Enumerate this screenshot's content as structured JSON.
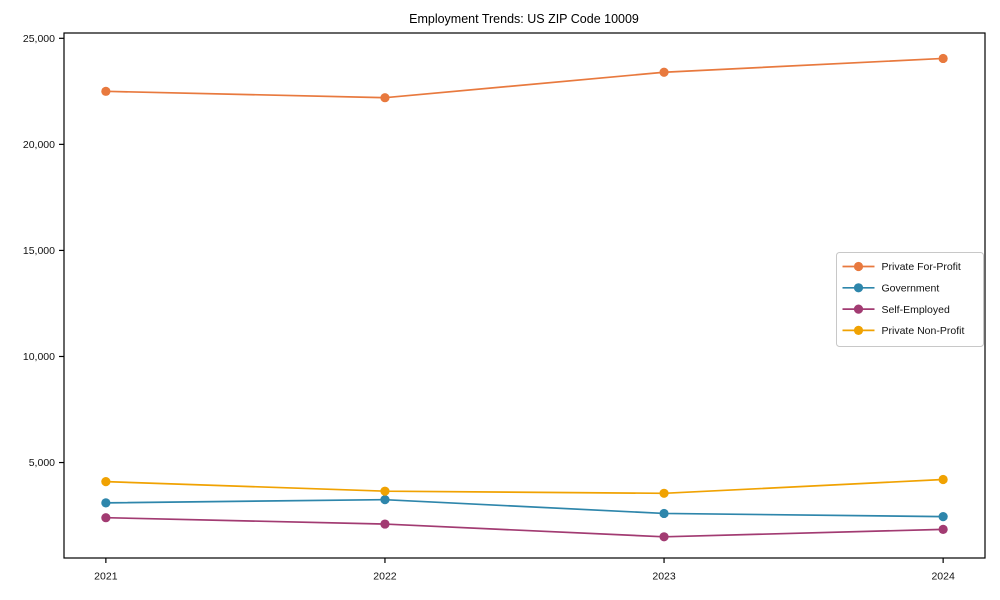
{
  "chart_data": {
    "type": "line",
    "title": "Employment Trends: US ZIP Code 10009",
    "xlabel": "",
    "ylabel": "",
    "categories": [
      "2021",
      "2022",
      "2023",
      "2024"
    ],
    "series": [
      {
        "name": "Private For-Profit",
        "color": "#E8793E",
        "values": [
          22500,
          22200,
          23400,
          24050
        ]
      },
      {
        "name": "Government",
        "color": "#2E86AB",
        "values": [
          3100,
          3250,
          2600,
          2450
        ]
      },
      {
        "name": "Self-Employed",
        "color": "#A23B72",
        "values": [
          2400,
          2100,
          1500,
          1850
        ]
      },
      {
        "name": "Private Non-Profit",
        "color": "#F0A202",
        "values": [
          4100,
          3650,
          3550,
          4200
        ]
      }
    ],
    "ylim": [
      500,
      25250
    ],
    "yticks": [
      5000,
      10000,
      15000,
      20000,
      25000
    ],
    "ytick_labels": [
      "5,000",
      "10,000",
      "15,000",
      "20,000",
      "25,000"
    ],
    "grid": false,
    "marker": "circle",
    "legend": {
      "position": "right-middle",
      "background": "#ffffff",
      "border_color": "#c8c8c8",
      "entries": [
        "Private For-Profit",
        "Government",
        "Self-Employed",
        "Private Non-Profit"
      ]
    },
    "axis_color": "#000000",
    "background_color": "#ffffff"
  }
}
